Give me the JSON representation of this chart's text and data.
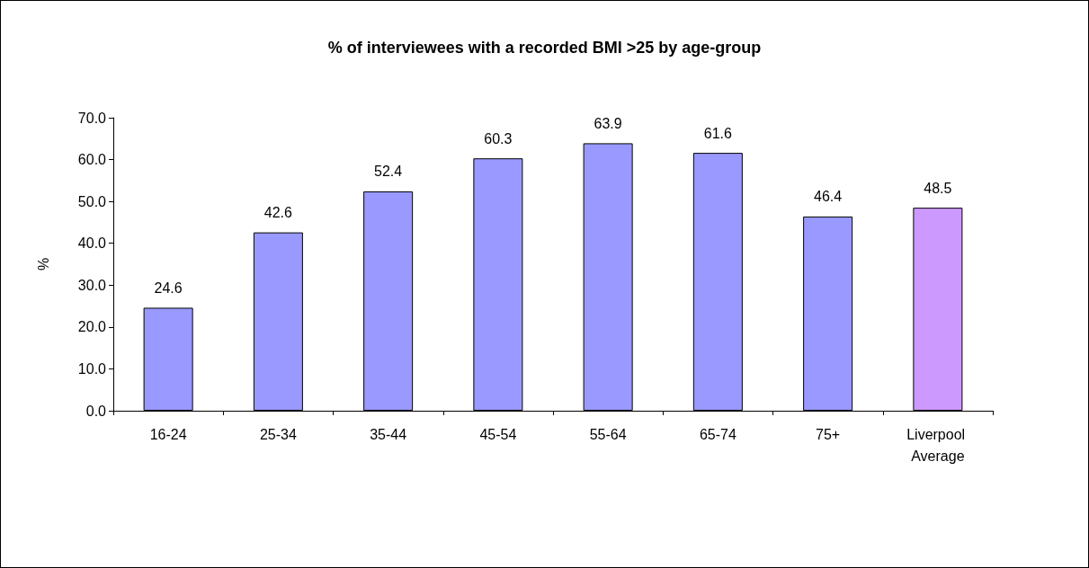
{
  "chart_data": {
    "type": "bar",
    "title": "% of interviewees with a recorded BMI >25 by age-group",
    "ylabel": "%",
    "categories": [
      "16-24",
      "25-34",
      "35-44",
      "45-54",
      "55-64",
      "65-74",
      "75+",
      "Liverpool Average"
    ],
    "values": [
      24.6,
      42.6,
      52.4,
      60.3,
      63.9,
      61.6,
      46.4,
      48.5
    ],
    "colors": [
      "#9999ff",
      "#9999ff",
      "#9999ff",
      "#9999ff",
      "#9999ff",
      "#9999ff",
      "#9999ff",
      "#cc99ff"
    ],
    "ylim": [
      0,
      70
    ],
    "yticks": [
      {
        "value": 0,
        "label": "0.0"
      },
      {
        "value": 10,
        "label": "10.0"
      },
      {
        "value": 20,
        "label": "20.0"
      },
      {
        "value": 30,
        "label": "30.0"
      },
      {
        "value": 40,
        "label": "40.0"
      },
      {
        "value": 50,
        "label": "50.0"
      },
      {
        "value": 60,
        "label": "60.0"
      },
      {
        "value": 70,
        "label": "70.0"
      }
    ],
    "grid": false,
    "data_labels": true
  }
}
